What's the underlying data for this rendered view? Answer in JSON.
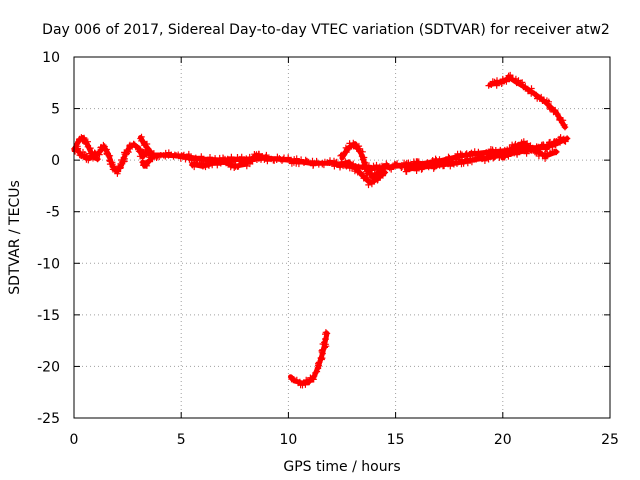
{
  "chart_data": {
    "type": "scatter",
    "title": "Day 006 of 2017, Sidereal Day-to-day VTEC variation (SDTVAR) for receiver atw2",
    "xlabel": "GPS time / hours",
    "ylabel": "SDTVAR / TECUs",
    "xlim": [
      0,
      25
    ],
    "ylim": [
      -25,
      10
    ],
    "xticks": [
      0,
      5,
      10,
      15,
      20,
      25
    ],
    "yticks": [
      -25,
      -20,
      -15,
      -10,
      -5,
      0,
      5,
      10
    ],
    "grid": true,
    "marker": "+",
    "series": [
      {
        "name": "SDTVAR",
        "color": "#ff0000",
        "tracks": [
          [
            [
              0.0,
              1.0
            ],
            [
              0.2,
              1.8
            ],
            [
              0.4,
              2.2
            ],
            [
              0.6,
              1.6
            ],
            [
              0.8,
              0.7
            ],
            [
              1.0,
              0.4
            ],
            [
              1.2,
              0.8
            ],
            [
              1.4,
              1.3
            ],
            [
              1.6,
              0.6
            ],
            [
              1.8,
              -0.6
            ],
            [
              2.0,
              -1.1
            ],
            [
              2.2,
              -0.5
            ],
            [
              2.4,
              0.6
            ],
            [
              2.6,
              1.3
            ],
            [
              2.8,
              1.5
            ],
            [
              3.0,
              1.2
            ],
            [
              3.2,
              0.3
            ],
            [
              3.4,
              0.8
            ],
            [
              3.6,
              0.5
            ],
            [
              4.0,
              0.5
            ],
            [
              5.0,
              0.4
            ],
            [
              6.0,
              0.1
            ],
            [
              7.0,
              0.0
            ],
            [
              8.0,
              0.1
            ],
            [
              9.0,
              0.2
            ],
            [
              10.0,
              0.0
            ],
            [
              11.0,
              -0.3
            ],
            [
              12.0,
              -0.3
            ],
            [
              13.0,
              -0.6
            ],
            [
              14.0,
              -0.8
            ],
            [
              15.0,
              -0.6
            ],
            [
              16.0,
              -0.4
            ],
            [
              17.0,
              -0.1
            ],
            [
              18.0,
              0.4
            ],
            [
              19.0,
              0.7
            ],
            [
              20.0,
              0.9
            ],
            [
              21.0,
              1.1
            ],
            [
              22.0,
              1.3
            ],
            [
              22.8,
              2.0
            ]
          ],
          [
            [
              0.1,
              1.2
            ],
            [
              0.3,
              0.6
            ],
            [
              0.5,
              0.3
            ],
            [
              0.7,
              0.2
            ],
            [
              0.9,
              0.3
            ],
            [
              1.1,
              0.1
            ]
          ],
          [
            [
              3.1,
              2.2
            ],
            [
              3.3,
              1.5
            ],
            [
              3.5,
              1.0
            ],
            [
              3.7,
              0.4
            ],
            [
              3.3,
              -0.6
            ],
            [
              3.2,
              -0.2
            ]
          ],
          [
            [
              5.5,
              -0.4
            ],
            [
              6.0,
              -0.6
            ],
            [
              6.5,
              -0.3
            ],
            [
              7.0,
              -0.2
            ],
            [
              7.5,
              -0.6
            ],
            [
              8.0,
              -0.4
            ],
            [
              8.5,
              0.5
            ],
            [
              9.0,
              0.2
            ]
          ],
          [
            [
              12.5,
              0.2
            ],
            [
              12.8,
              1.2
            ],
            [
              13.1,
              1.6
            ],
            [
              13.4,
              0.6
            ],
            [
              13.6,
              -0.6
            ],
            [
              13.9,
              -1.6
            ],
            [
              14.2,
              -1.2
            ],
            [
              14.6,
              -0.5
            ]
          ],
          [
            [
              12.3,
              -0.5
            ],
            [
              12.8,
              -0.2
            ],
            [
              13.2,
              -0.9
            ],
            [
              13.5,
              -1.6
            ],
            [
              13.8,
              -2.2
            ],
            [
              14.1,
              -1.9
            ],
            [
              14.5,
              -1.2
            ]
          ],
          [
            [
              15.5,
              -0.9
            ],
            [
              16.2,
              -0.7
            ],
            [
              17.0,
              -0.5
            ],
            [
              17.8,
              -0.3
            ],
            [
              18.5,
              0.0
            ],
            [
              19.2,
              0.2
            ],
            [
              20.0,
              0.5
            ],
            [
              20.8,
              0.8
            ],
            [
              21.6,
              1.1
            ],
            [
              22.4,
              1.5
            ],
            [
              23.0,
              2.1
            ]
          ],
          [
            [
              20.0,
              0.2
            ],
            [
              20.5,
              1.3
            ],
            [
              21.0,
              1.6
            ],
            [
              21.5,
              0.9
            ],
            [
              22.0,
              0.4
            ],
            [
              22.5,
              0.8
            ]
          ],
          [
            [
              19.4,
              7.3
            ],
            [
              19.7,
              7.5
            ],
            [
              20.0,
              7.6
            ],
            [
              20.3,
              8.0
            ],
            [
              20.6,
              7.6
            ],
            [
              21.0,
              7.1
            ],
            [
              21.5,
              6.4
            ],
            [
              22.0,
              5.6
            ],
            [
              22.5,
              4.6
            ],
            [
              22.9,
              3.2
            ]
          ],
          [
            [
              10.1,
              -21.0
            ],
            [
              10.3,
              -21.4
            ],
            [
              10.6,
              -21.6
            ],
            [
              10.9,
              -21.6
            ],
            [
              11.2,
              -21.0
            ],
            [
              11.4,
              -20.0
            ],
            [
              11.6,
              -18.7
            ],
            [
              11.8,
              -16.8
            ]
          ]
        ]
      }
    ]
  }
}
